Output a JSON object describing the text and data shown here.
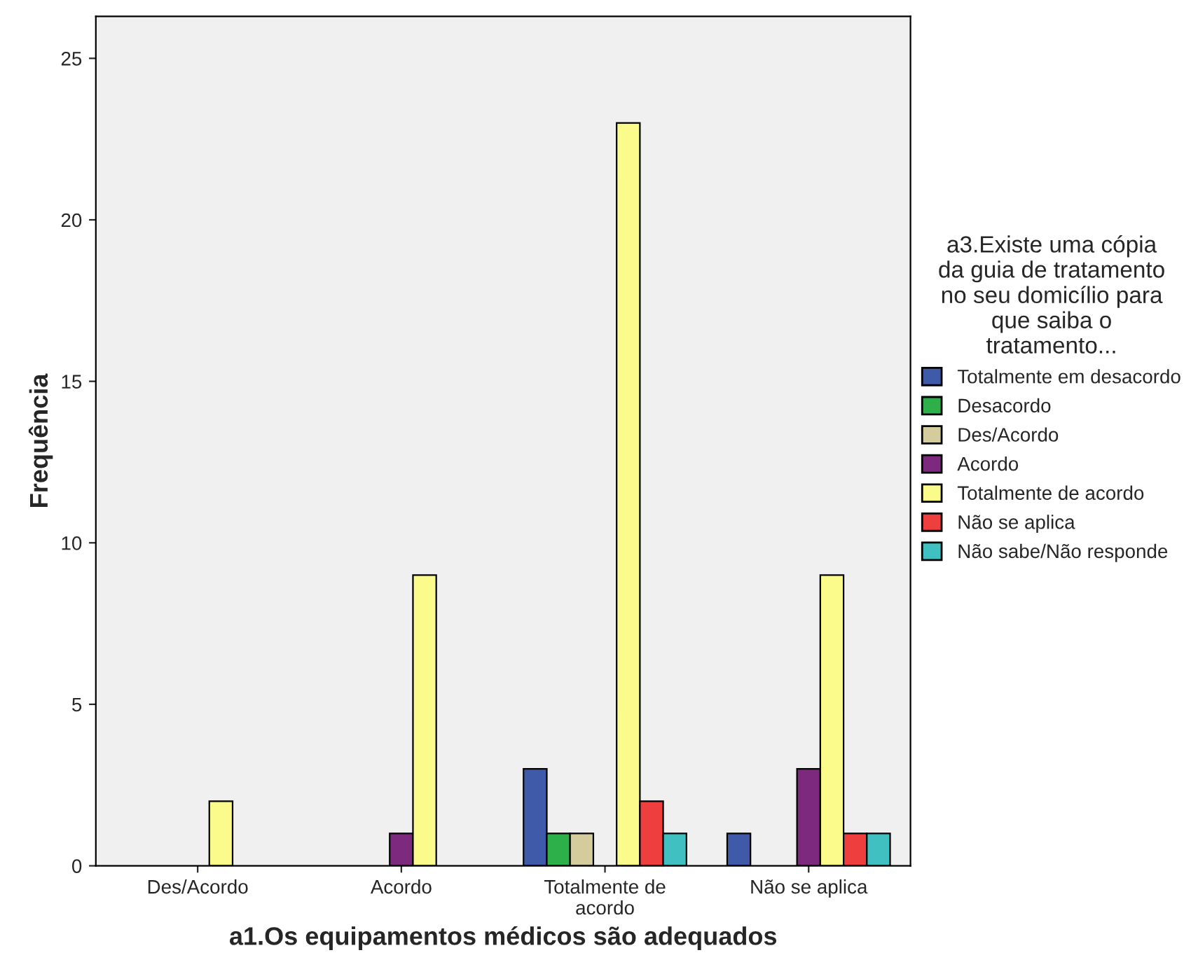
{
  "chart_data": {
    "type": "bar",
    "xlabel": "a1.Os equipamentos médicos são adequados",
    "ylabel": "Frequência",
    "legend_title": "a3.Existe uma cópia\nda guia de tratamento\nno seu domicílio para\nque saiba o\ntratamento...",
    "categories": [
      "Des/Acordo",
      "Acordo",
      "Totalmente de\nacordo",
      "Não se aplica"
    ],
    "series": [
      {
        "name": "Totalmente em desacordo",
        "color": "#3f5aa8",
        "values": [
          null,
          null,
          3,
          1
        ]
      },
      {
        "name": "Desacordo",
        "color": "#2db04a",
        "values": [
          null,
          null,
          1,
          null
        ]
      },
      {
        "name": "Des/Acordo",
        "color": "#d4cc9c",
        "values": [
          null,
          null,
          1,
          null
        ]
      },
      {
        "name": "Acordo",
        "color": "#7d2a7e",
        "values": [
          null,
          1,
          null,
          3
        ]
      },
      {
        "name": "Totalmente de acordo",
        "color": "#fbfb8c",
        "values": [
          2,
          9,
          23,
          9
        ]
      },
      {
        "name": "Não se aplica",
        "color": "#ee3e3e",
        "values": [
          null,
          null,
          2,
          1
        ]
      },
      {
        "name": "Não sabe/Não responde",
        "color": "#40c0c0",
        "values": [
          null,
          null,
          1,
          1
        ]
      }
    ],
    "ylim": [
      0,
      26.3
    ],
    "yticks": [
      0,
      5,
      10,
      15,
      20,
      25
    ],
    "grid": false,
    "legend": "right"
  }
}
